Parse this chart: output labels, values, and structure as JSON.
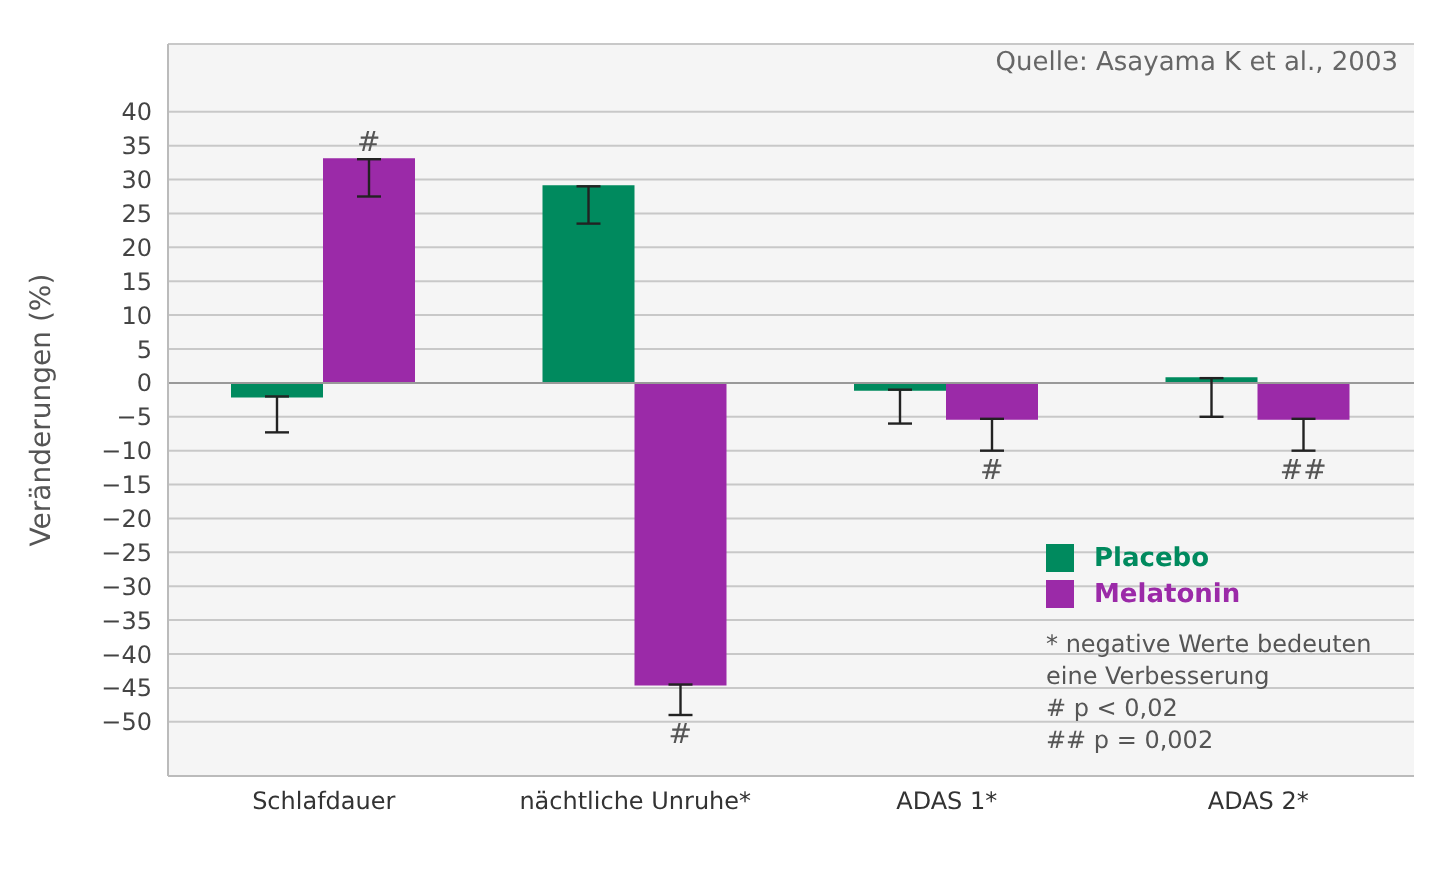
{
  "chart_data": {
    "type": "bar",
    "ylabel": "Veränderungen (%)",
    "categories": [
      "Schlafdauer",
      "nächtliche Unruhe*",
      "ADAS 1*",
      "ADAS 2*"
    ],
    "series": [
      {
        "name": "Placebo",
        "color": "#008a5e",
        "values": [
          -2,
          29,
          -1,
          0.7
        ],
        "errors": [
          [
            -7.3,
            -2
          ],
          [
            23.5,
            29
          ],
          [
            -6,
            -1
          ],
          [
            -5,
            0.7
          ]
        ]
      },
      {
        "name": "Melatonin",
        "color": "#9b2aa8",
        "values": [
          33,
          -44.5,
          -5.3,
          -5.3
        ],
        "errors": [
          [
            27.5,
            33
          ],
          [
            -49,
            -44.5
          ],
          [
            -10,
            -5.3
          ],
          [
            -10,
            -5.3
          ]
        ]
      }
    ],
    "ylim": [
      -58,
      50
    ],
    "yticks": [
      {
        "value": -50,
        "label": "−50"
      },
      {
        "value": -45,
        "label": "−45"
      },
      {
        "value": -40,
        "label": "−40"
      },
      {
        "value": -35,
        "label": "−35"
      },
      {
        "value": -30,
        "label": "−30"
      },
      {
        "value": -25,
        "label": "−25"
      },
      {
        "value": -20,
        "label": "−20"
      },
      {
        "value": -15,
        "label": "−15"
      },
      {
        "value": -10,
        "label": "−10"
      },
      {
        "value": -5,
        "label": "−5"
      },
      0,
      5,
      10,
      15,
      20,
      25,
      30,
      35,
      40
    ],
    "grid": "y",
    "legend": "bottom right",
    "annotations": [
      "Quelle: Asayama K et al., 2003",
      "#",
      "#",
      "#",
      "##",
      "* negative Werte bedeuten eine Verbesserung",
      "# p < 0,02",
      "## p = 0,002"
    ]
  }
}
